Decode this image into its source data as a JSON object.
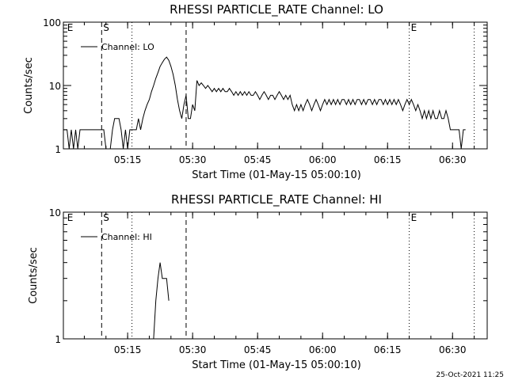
{
  "timestamp": "25-Oct-2021 11:25",
  "chart_data": [
    {
      "type": "line",
      "title": "RHESSI PARTICLE_RATE Channel: LO",
      "xlabel": "Start Time (01-May-15 05:00:10)",
      "ylabel": "Counts/sec",
      "yscale": "log",
      "ylim": [
        1,
        100
      ],
      "ytick_labels": [
        "1",
        "10",
        "100"
      ],
      "xlim": [
        "05:00:10",
        "06:38:00"
      ],
      "xtick_labels": [
        "05:15",
        "05:30",
        "05:45",
        "06:00",
        "06:15",
        "06:30"
      ],
      "legend": {
        "position": "top-left",
        "entry": "Channel: LO"
      },
      "markers": [
        {
          "time": "05:00:40",
          "label": "E",
          "style": "none"
        },
        {
          "time": "05:09:00",
          "label": "S",
          "style": "dashed"
        },
        {
          "time": "05:16:00",
          "label": "",
          "style": "dotted"
        },
        {
          "time": "05:28:30",
          "label": "",
          "style": "dashed"
        },
        {
          "time": "06:20:00",
          "label": "E",
          "style": "dotted"
        },
        {
          "time": "06:35:00",
          "label": "",
          "style": "dotted"
        }
      ],
      "series": [
        {
          "name": "Channel: LO",
          "points": [
            [
              "05:00:10",
              2
            ],
            [
              "05:01:00",
              2
            ],
            [
              "05:01:30",
              1
            ],
            [
              "05:02:00",
              2
            ],
            [
              "05:02:30",
              1
            ],
            [
              "05:03:00",
              2
            ],
            [
              "05:03:30",
              1
            ],
            [
              "05:04:00",
              2
            ],
            [
              "05:06:00",
              2
            ],
            [
              "05:08:00",
              2
            ],
            [
              "05:09:30",
              2
            ],
            [
              "05:10:00",
              1
            ],
            [
              "05:11:00",
              1
            ],
            [
              "05:11:30",
              2
            ],
            [
              "05:12:00",
              3
            ],
            [
              "05:13:00",
              3
            ],
            [
              "05:13:30",
              2
            ],
            [
              "05:14:00",
              1
            ],
            [
              "05:14:30",
              2
            ],
            [
              "05:15:00",
              1
            ],
            [
              "05:15:30",
              2
            ],
            [
              "05:16:30",
              2
            ],
            [
              "05:17:00",
              2
            ],
            [
              "05:17:30",
              3
            ],
            [
              "05:18:00",
              2
            ],
            [
              "05:18:30",
              3
            ],
            [
              "05:19:00",
              4
            ],
            [
              "05:19:30",
              5
            ],
            [
              "05:20:00",
              6
            ],
            [
              "05:20:30",
              8
            ],
            [
              "05:21:00",
              10
            ],
            [
              "05:21:30",
              13
            ],
            [
              "05:22:00",
              16
            ],
            [
              "05:22:30",
              20
            ],
            [
              "05:23:00",
              23
            ],
            [
              "05:23:30",
              26
            ],
            [
              "05:24:00",
              28
            ],
            [
              "05:24:30",
              25
            ],
            [
              "05:25:00",
              20
            ],
            [
              "05:25:30",
              15
            ],
            [
              "05:26:00",
              10
            ],
            [
              "05:26:30",
              6
            ],
            [
              "05:27:00",
              4
            ],
            [
              "05:27:30",
              3
            ],
            [
              "05:28:00",
              5
            ],
            [
              "05:28:30",
              7
            ],
            [
              "05:29:00",
              3
            ],
            [
              "05:29:30",
              3
            ],
            [
              "05:30:00",
              5
            ],
            [
              "05:30:30",
              4
            ],
            [
              "05:31:00",
              12
            ],
            [
              "05:31:30",
              10
            ],
            [
              "05:32:00",
              11
            ],
            [
              "05:32:30",
              10
            ],
            [
              "05:33:00",
              9
            ],
            [
              "05:33:30",
              10
            ],
            [
              "05:34:00",
              9
            ],
            [
              "05:34:30",
              8
            ],
            [
              "05:35:00",
              9
            ],
            [
              "05:35:30",
              8
            ],
            [
              "05:36:00",
              9
            ],
            [
              "05:36:30",
              8
            ],
            [
              "05:37:00",
              9
            ],
            [
              "05:37:30",
              8
            ],
            [
              "05:38:00",
              8
            ],
            [
              "05:38:30",
              9
            ],
            [
              "05:39:00",
              8
            ],
            [
              "05:39:30",
              7
            ],
            [
              "05:40:00",
              8
            ],
            [
              "05:40:30",
              7
            ],
            [
              "05:41:00",
              8
            ],
            [
              "05:41:30",
              7
            ],
            [
              "05:42:00",
              8
            ],
            [
              "05:42:30",
              7
            ],
            [
              "05:43:00",
              8
            ],
            [
              "05:43:30",
              7
            ],
            [
              "05:44:00",
              7
            ],
            [
              "05:44:30",
              8
            ],
            [
              "05:45:00",
              7
            ],
            [
              "05:45:30",
              6
            ],
            [
              "05:46:00",
              7
            ],
            [
              "05:46:30",
              8
            ],
            [
              "05:47:00",
              7
            ],
            [
              "05:47:30",
              6
            ],
            [
              "05:48:00",
              7
            ],
            [
              "05:48:30",
              7
            ],
            [
              "05:49:00",
              6
            ],
            [
              "05:49:30",
              7
            ],
            [
              "05:50:00",
              8
            ],
            [
              "05:50:30",
              7
            ],
            [
              "05:51:00",
              6
            ],
            [
              "05:51:30",
              7
            ],
            [
              "05:52:00",
              6
            ],
            [
              "05:52:30",
              7
            ],
            [
              "05:53:00",
              5
            ],
            [
              "05:53:30",
              4
            ],
            [
              "05:54:00",
              5
            ],
            [
              "05:54:30",
              4
            ],
            [
              "05:55:00",
              5
            ],
            [
              "05:55:30",
              4
            ],
            [
              "05:56:00",
              5
            ],
            [
              "05:56:30",
              6
            ],
            [
              "05:57:00",
              5
            ],
            [
              "05:57:30",
              4
            ],
            [
              "05:58:00",
              5
            ],
            [
              "05:58:30",
              6
            ],
            [
              "05:59:00",
              5
            ],
            [
              "05:59:30",
              4
            ],
            [
              "06:00:00",
              5
            ],
            [
              "06:00:30",
              6
            ],
            [
              "06:01:00",
              5
            ],
            [
              "06:01:30",
              6
            ],
            [
              "06:02:00",
              5
            ],
            [
              "06:02:30",
              6
            ],
            [
              "06:03:00",
              5
            ],
            [
              "06:03:30",
              6
            ],
            [
              "06:04:00",
              5
            ],
            [
              "06:04:30",
              6
            ],
            [
              "06:05:00",
              6
            ],
            [
              "06:05:30",
              5
            ],
            [
              "06:06:00",
              6
            ],
            [
              "06:06:30",
              5
            ],
            [
              "06:07:00",
              6
            ],
            [
              "06:07:30",
              5
            ],
            [
              "06:08:00",
              6
            ],
            [
              "06:08:30",
              6
            ],
            [
              "06:09:00",
              5
            ],
            [
              "06:09:30",
              6
            ],
            [
              "06:10:00",
              5
            ],
            [
              "06:10:30",
              6
            ],
            [
              "06:11:00",
              6
            ],
            [
              "06:11:30",
              5
            ],
            [
              "06:12:00",
              6
            ],
            [
              "06:12:30",
              5
            ],
            [
              "06:13:00",
              6
            ],
            [
              "06:13:30",
              6
            ],
            [
              "06:14:00",
              5
            ],
            [
              "06:14:30",
              6
            ],
            [
              "06:15:00",
              5
            ],
            [
              "06:15:30",
              6
            ],
            [
              "06:16:00",
              5
            ],
            [
              "06:16:30",
              6
            ],
            [
              "06:17:00",
              5
            ],
            [
              "06:17:30",
              6
            ],
            [
              "06:18:00",
              5
            ],
            [
              "06:18:30",
              4
            ],
            [
              "06:19:00",
              5
            ],
            [
              "06:19:30",
              6
            ],
            [
              "06:20:00",
              5
            ],
            [
              "06:20:30",
              6
            ],
            [
              "06:21:00",
              5
            ],
            [
              "06:21:30",
              4
            ],
            [
              "06:22:00",
              5
            ],
            [
              "06:22:30",
              4
            ],
            [
              "06:23:00",
              3
            ],
            [
              "06:23:30",
              4
            ],
            [
              "06:24:00",
              3
            ],
            [
              "06:24:30",
              4
            ],
            [
              "06:25:00",
              3
            ],
            [
              "06:25:30",
              4
            ],
            [
              "06:26:00",
              3
            ],
            [
              "06:26:30",
              3
            ],
            [
              "06:27:00",
              4
            ],
            [
              "06:27:30",
              3
            ],
            [
              "06:28:00",
              3
            ],
            [
              "06:28:30",
              4
            ],
            [
              "06:29:00",
              3
            ],
            [
              "06:29:30",
              2
            ],
            [
              "06:30:00",
              2
            ],
            [
              "06:30:30",
              2
            ],
            [
              "06:31:00",
              2
            ],
            [
              "06:31:30",
              2
            ],
            [
              "06:32:00",
              1
            ],
            [
              "06:32:30",
              2
            ],
            [
              "06:33:00",
              2
            ]
          ]
        }
      ]
    },
    {
      "type": "line",
      "title": "RHESSI PARTICLE_RATE Channel: HI",
      "xlabel": "Start Time (01-May-15 05:00:10)",
      "ylabel": "Counts/sec",
      "yscale": "log",
      "ylim": [
        1,
        10
      ],
      "ytick_labels": [
        "1",
        "10"
      ],
      "xlim": [
        "05:00:10",
        "06:38:00"
      ],
      "xtick_labels": [
        "05:15",
        "05:30",
        "05:45",
        "06:00",
        "06:15",
        "06:30"
      ],
      "legend": {
        "position": "top-left",
        "entry": "Channel: HI"
      },
      "markers": [
        {
          "time": "05:00:40",
          "label": "E",
          "style": "none"
        },
        {
          "time": "05:09:00",
          "label": "S",
          "style": "dashed"
        },
        {
          "time": "05:16:00",
          "label": "",
          "style": "dotted"
        },
        {
          "time": "05:28:30",
          "label": "",
          "style": "dashed"
        },
        {
          "time": "06:20:00",
          "label": "E",
          "style": "dotted"
        },
        {
          "time": "06:35:00",
          "label": "",
          "style": "dotted"
        }
      ],
      "series": [
        {
          "name": "Channel: HI",
          "points": [
            [
              "05:21:00",
              1
            ],
            [
              "05:21:30",
              2
            ],
            [
              "05:22:00",
              3
            ],
            [
              "05:22:30",
              4
            ],
            [
              "05:23:00",
              3
            ],
            [
              "05:23:30",
              3
            ],
            [
              "05:24:00",
              3
            ],
            [
              "05:24:30",
              2
            ]
          ]
        }
      ]
    }
  ]
}
